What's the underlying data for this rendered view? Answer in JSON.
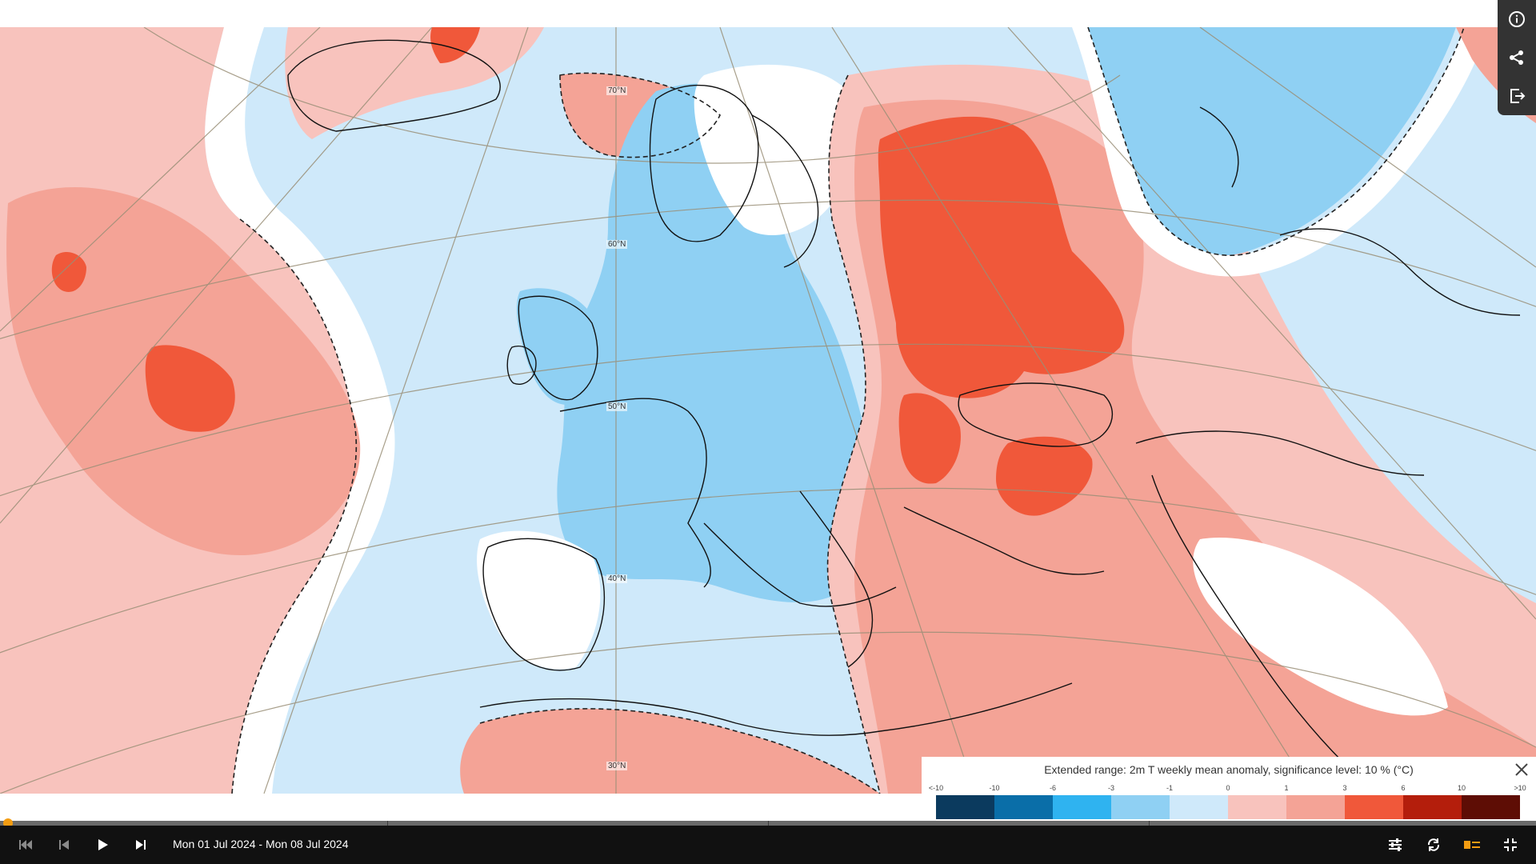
{
  "map": {
    "latitude_labels": [
      "70°N",
      "60°N",
      "50°N",
      "40°N",
      "30°N"
    ],
    "colors": {
      "ocean_light_blue": "#cfe9fa",
      "land_blue": "#8fd0f3",
      "light_red": "#f8c3bd",
      "mid_red": "#f4a396",
      "strong_red": "#f0583a",
      "white": "#ffffff",
      "coast": "#111111"
    }
  },
  "side_rail": {
    "icons": [
      "info-icon",
      "share-icon",
      "export-icon"
    ]
  },
  "legend": {
    "title": "Extended range: 2m T weekly mean anomaly, significance level: 10 % (°C)",
    "ticks": [
      "<-10",
      "-10",
      "-6",
      "-3",
      "-1",
      "0",
      "1",
      "3",
      "6",
      "10",
      ">10"
    ],
    "swatches": [
      "#0b3a5e",
      "#0a6ea8",
      "#2fb3f0",
      "#8fd0f3",
      "#cfe9fa",
      "#f8c3bd",
      "#f4a396",
      "#f0583a",
      "#b41e0c",
      "#5e0d05"
    ]
  },
  "player": {
    "date_range": "Mon 01 Jul 2024 - Mon 08 Jul 2024",
    "progress": 0.0
  }
}
